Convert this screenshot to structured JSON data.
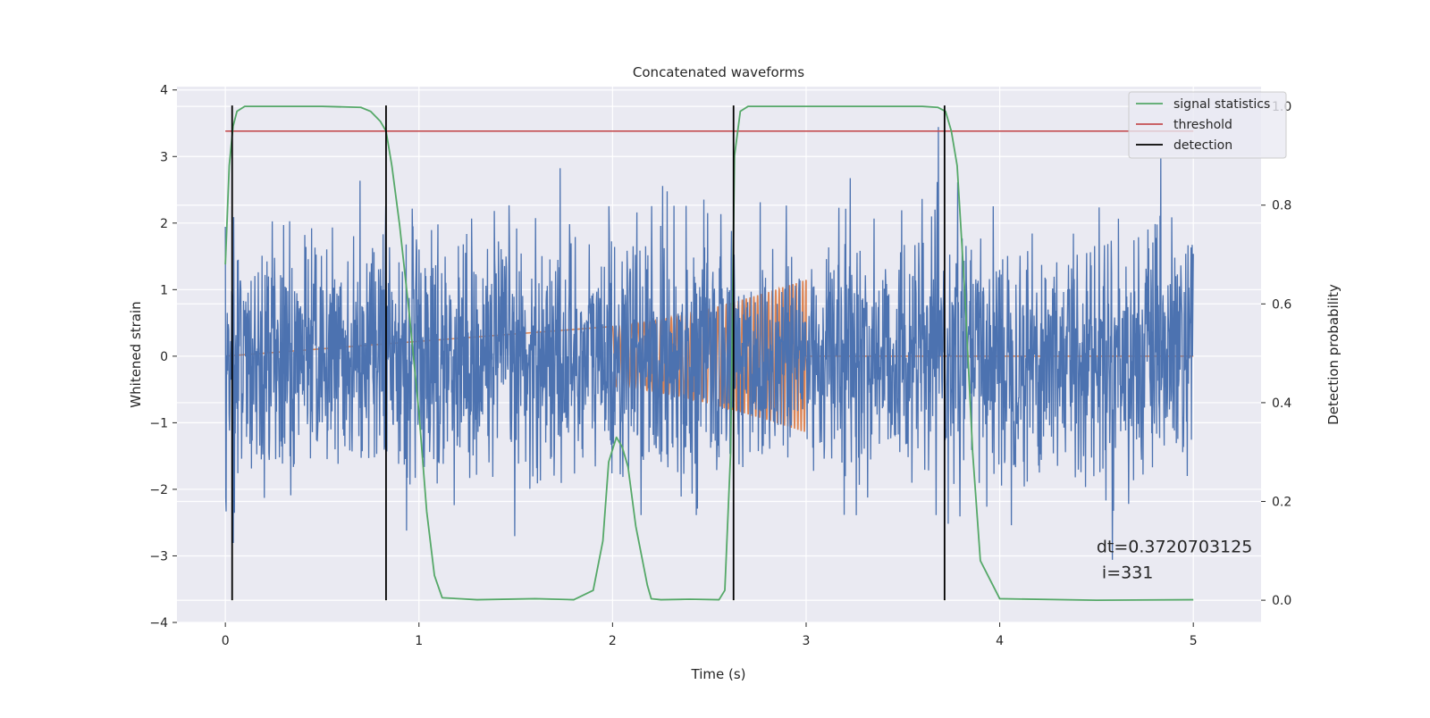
{
  "chart_data": {
    "type": "line",
    "title": "Concatenated waveforms",
    "xlabel": "Time (s)",
    "ylabel": "Whitened strain",
    "y2label": "Detection probability",
    "xlim": [
      -0.25,
      5.35
    ],
    "ylim": [
      -4.0,
      4.05
    ],
    "y2lim": [
      -0.045,
      1.04
    ],
    "xticks": [
      0,
      1,
      2,
      3,
      4,
      5
    ],
    "xtick_labels": [
      "0",
      "1",
      "2",
      "3",
      "4",
      "5"
    ],
    "yticks": [
      -4,
      -3,
      -2,
      -1,
      0,
      1,
      2,
      3,
      4
    ],
    "ytick_labels": [
      "−4",
      "−3",
      "−2",
      "−1",
      "0",
      "1",
      "2",
      "3",
      "4"
    ],
    "y2ticks": [
      0.0,
      0.2,
      0.4,
      0.6,
      0.8,
      1.0
    ],
    "y2tick_labels": [
      "0.0",
      "0.2",
      "0.4",
      "0.6",
      "0.8",
      "1.0"
    ],
    "grid": true,
    "legend_position": "top-right",
    "colors": {
      "background": "#eaeaf2",
      "grid": "#ffffff",
      "strain": "#4c72b0",
      "template": "#dd8452",
      "signal_statistics": "#55a868",
      "threshold": "#c44e52",
      "detection": "#000000"
    },
    "strain": {
      "t_start": 0.0,
      "t_end": 5.0,
      "samples": 2560,
      "std": 0.9,
      "peak_max": 3.7,
      "peak_min": -3.5
    },
    "template": {
      "t_start": 2.0,
      "t_end": 3.0,
      "amp_start": 0.45,
      "amp_end": 1.15,
      "freq_start": 28,
      "freq_end": 60
    },
    "series": [
      {
        "name": "signal statistics",
        "axis": "right",
        "x": [
          0.0,
          0.02,
          0.04,
          0.06,
          0.1,
          0.15,
          0.3,
          0.5,
          0.7,
          0.75,
          0.8,
          0.83,
          0.86,
          0.9,
          0.95,
          1.0,
          1.04,
          1.08,
          1.12,
          1.3,
          1.6,
          1.8,
          1.9,
          1.95,
          1.98,
          2.02,
          2.05,
          2.08,
          2.12,
          2.18,
          2.2,
          2.25,
          2.4,
          2.55,
          2.58,
          2.61,
          2.63,
          2.66,
          2.7,
          2.8,
          3.3,
          3.6,
          3.68,
          3.72,
          3.75,
          3.78,
          3.82,
          3.86,
          3.9,
          4.0,
          4.5,
          5.0
        ],
        "y": [
          0.68,
          0.88,
          0.96,
          0.99,
          1.0,
          1.0,
          1.0,
          1.0,
          0.998,
          0.99,
          0.97,
          0.95,
          0.88,
          0.76,
          0.58,
          0.38,
          0.18,
          0.05,
          0.005,
          0.001,
          0.003,
          0.001,
          0.02,
          0.12,
          0.28,
          0.33,
          0.31,
          0.27,
          0.15,
          0.03,
          0.003,
          0.001,
          0.002,
          0.001,
          0.02,
          0.3,
          0.9,
          0.99,
          1.0,
          1.0,
          1.0,
          1.0,
          0.998,
          0.99,
          0.95,
          0.88,
          0.62,
          0.3,
          0.08,
          0.003,
          0.0,
          0.001
        ]
      },
      {
        "name": "threshold",
        "axis": "right",
        "x": [
          0.0,
          5.0
        ],
        "y": [
          0.95,
          0.95
        ]
      },
      {
        "name": "detection",
        "axis": "right",
        "x": [
          0.035,
          0.83,
          2.625,
          3.715
        ],
        "y_range": [
          0.0,
          1.0
        ]
      }
    ],
    "annotation": {
      "line1": "dt=0.3720703125",
      "line2": " i=331",
      "x": 4.5,
      "y": -2.95
    }
  }
}
